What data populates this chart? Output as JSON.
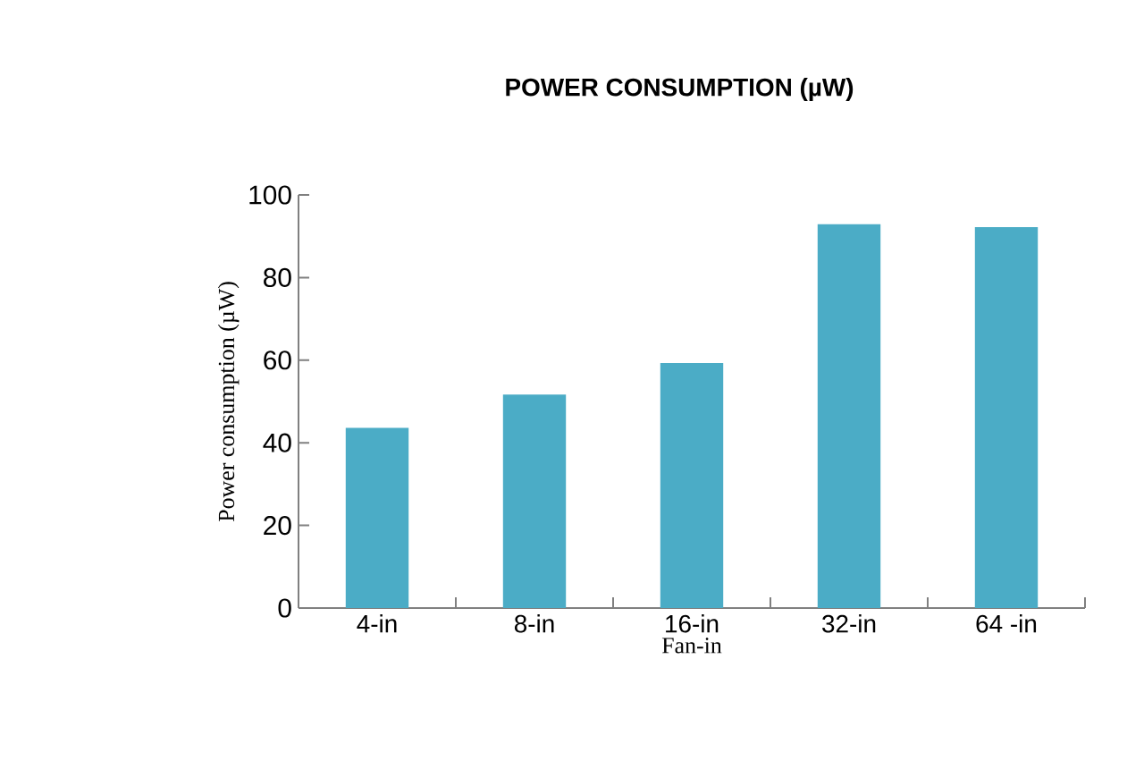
{
  "chart_data": {
    "type": "bar",
    "title": "**POWER CONSUMPTION (µW)**",
    "xlabel": "Fan-in",
    "ylabel": "Power consumption (µW)",
    "categories": [
      "4-in",
      "8-in",
      "16-in",
      "32-in",
      "64 -in"
    ],
    "values": [
      43.6,
      51.7,
      59.3,
      92.9,
      92.2
    ],
    "color": "#4bacc6",
    "ylim": [
      0,
      100
    ],
    "yticks": [
      0,
      20,
      40,
      60,
      80,
      100
    ],
    "grid": false
  }
}
